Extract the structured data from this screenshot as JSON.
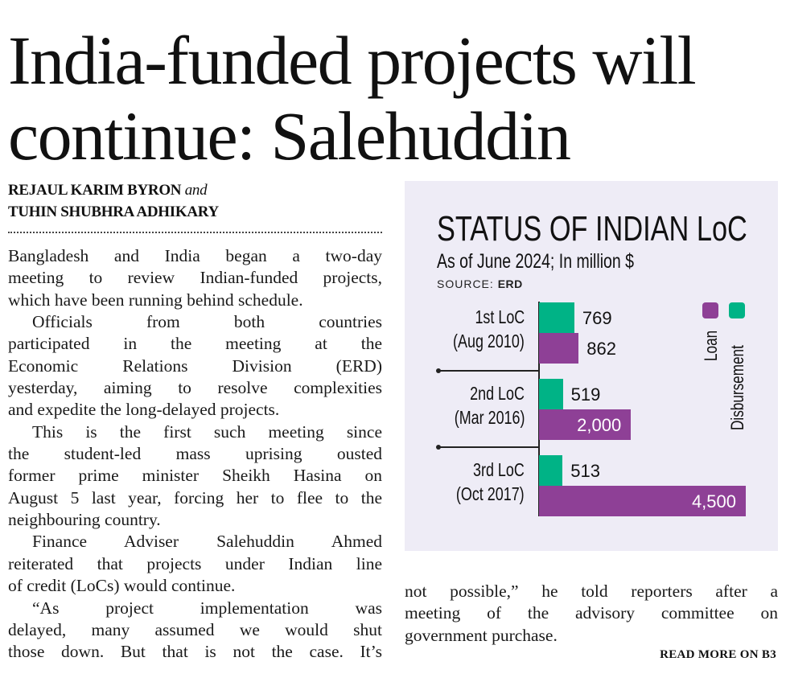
{
  "headline": [
    "India-funded projects will",
    "continue: Salehuddin"
  ],
  "byline": {
    "author1": "REJAUL KARIM BYRON",
    "conj": "and",
    "author2": "TUHIN SHUBHRA ADHIKARY"
  },
  "left_column": [
    {
      "text": "Bangladesh and India began a two-day"
    },
    {
      "text": "meeting to review Indian-funded projects,"
    },
    {
      "text": "which have been running behind schedule.",
      "last": true
    },
    {
      "text": "Officials from both countries",
      "indent": true
    },
    {
      "text": "participated in the meeting at the"
    },
    {
      "text": "Economic Relations Division (ERD)"
    },
    {
      "text": "yesterday, aiming to resolve complexities"
    },
    {
      "text": "and expedite the long-delayed projects.",
      "last": true
    },
    {
      "text": "This is the first such meeting since",
      "indent": true
    },
    {
      "text": "the student-led mass uprising ousted"
    },
    {
      "text": "former prime minister Sheikh Hasina on"
    },
    {
      "text": "August 5 last year, forcing her to flee to the"
    },
    {
      "text": "neighbouring country.",
      "last": true
    },
    {
      "text": "Finance Adviser Salehuddin Ahmed",
      "indent": true
    },
    {
      "text": "reiterated that projects under Indian line"
    },
    {
      "text": "of credit (LoCs) would continue.",
      "last": true
    },
    {
      "text": "“As project implementation was",
      "indent": true
    },
    {
      "text": "delayed, many assumed we would shut"
    },
    {
      "text": "those down. But that is not the case. It’s"
    }
  ],
  "right_column": [
    {
      "text": "not possible,” he told reporters after a"
    },
    {
      "text": "meeting of the advisory committee on"
    },
    {
      "text": "government purchase.",
      "last": true
    }
  ],
  "read_more": "READ MORE ON B3",
  "colors": {
    "loan": "#8e4096",
    "disbursement": "#00b386",
    "panel_bg": "#eeecf6"
  },
  "chart_data": {
    "type": "bar",
    "orientation": "horizontal",
    "title": "STATUS OF INDIAN LoC",
    "subtitle": "As of June 2024; In million $",
    "source_label": "SOURCE:",
    "source": "ERD",
    "categories": [
      {
        "name": "1st LoC",
        "date": "(Aug 2010)"
      },
      {
        "name": "2nd LoC",
        "date": "(Mar 2016)"
      },
      {
        "name": "3rd LoC",
        "date": "(Oct 2017)"
      }
    ],
    "series": [
      {
        "name": "Disbursement",
        "values": [
          769,
          519,
          513
        ],
        "labels": [
          "769",
          "519",
          "513"
        ]
      },
      {
        "name": "Loan",
        "values": [
          862,
          2000,
          4500
        ],
        "labels": [
          "862",
          "2,000",
          "4,500"
        ]
      }
    ],
    "legend": [
      "Loan",
      "Disbursement"
    ],
    "legend_position": "top-right",
    "xlim": [
      0,
      4500
    ]
  }
}
